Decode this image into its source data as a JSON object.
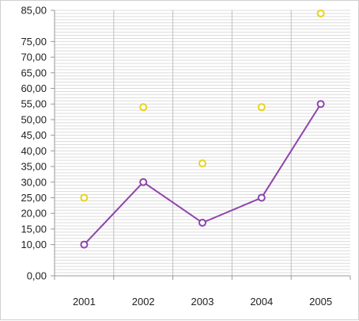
{
  "chart_data": {
    "type": "line",
    "categories": [
      "2001",
      "2002",
      "2003",
      "2004",
      "2005"
    ],
    "series": [
      {
        "type": "line",
        "values": [
          10,
          30,
          17,
          25,
          55
        ],
        "color": "#8e44ad"
      },
      {
        "type": "scatter",
        "values": [
          25,
          54,
          36,
          54,
          84
        ],
        "color": "#e8d21d"
      }
    ],
    "y_ticks": [
      {
        "value": 0,
        "label": "0,00"
      },
      {
        "value": 10,
        "label": "10,00"
      },
      {
        "value": 15,
        "label": "15,00"
      },
      {
        "value": 20,
        "label": "20,00"
      },
      {
        "value": 25,
        "label": "25,00"
      },
      {
        "value": 30,
        "label": "30,00"
      },
      {
        "value": 35,
        "label": "35,00"
      },
      {
        "value": 40,
        "label": "40,00"
      },
      {
        "value": 45,
        "label": "45,00"
      },
      {
        "value": 50,
        "label": "50,00"
      },
      {
        "value": 55,
        "label": "55,00"
      },
      {
        "value": 60,
        "label": "60,00"
      },
      {
        "value": 65,
        "label": "65,00"
      },
      {
        "value": 70,
        "label": "70,00"
      },
      {
        "value": 75,
        "label": "75,00"
      },
      {
        "value": 85,
        "label": "85,00"
      }
    ],
    "ylim": [
      0,
      85
    ],
    "minor_grid_step": 1,
    "grid": true,
    "title": "",
    "xlabel": "",
    "ylabel": ""
  }
}
